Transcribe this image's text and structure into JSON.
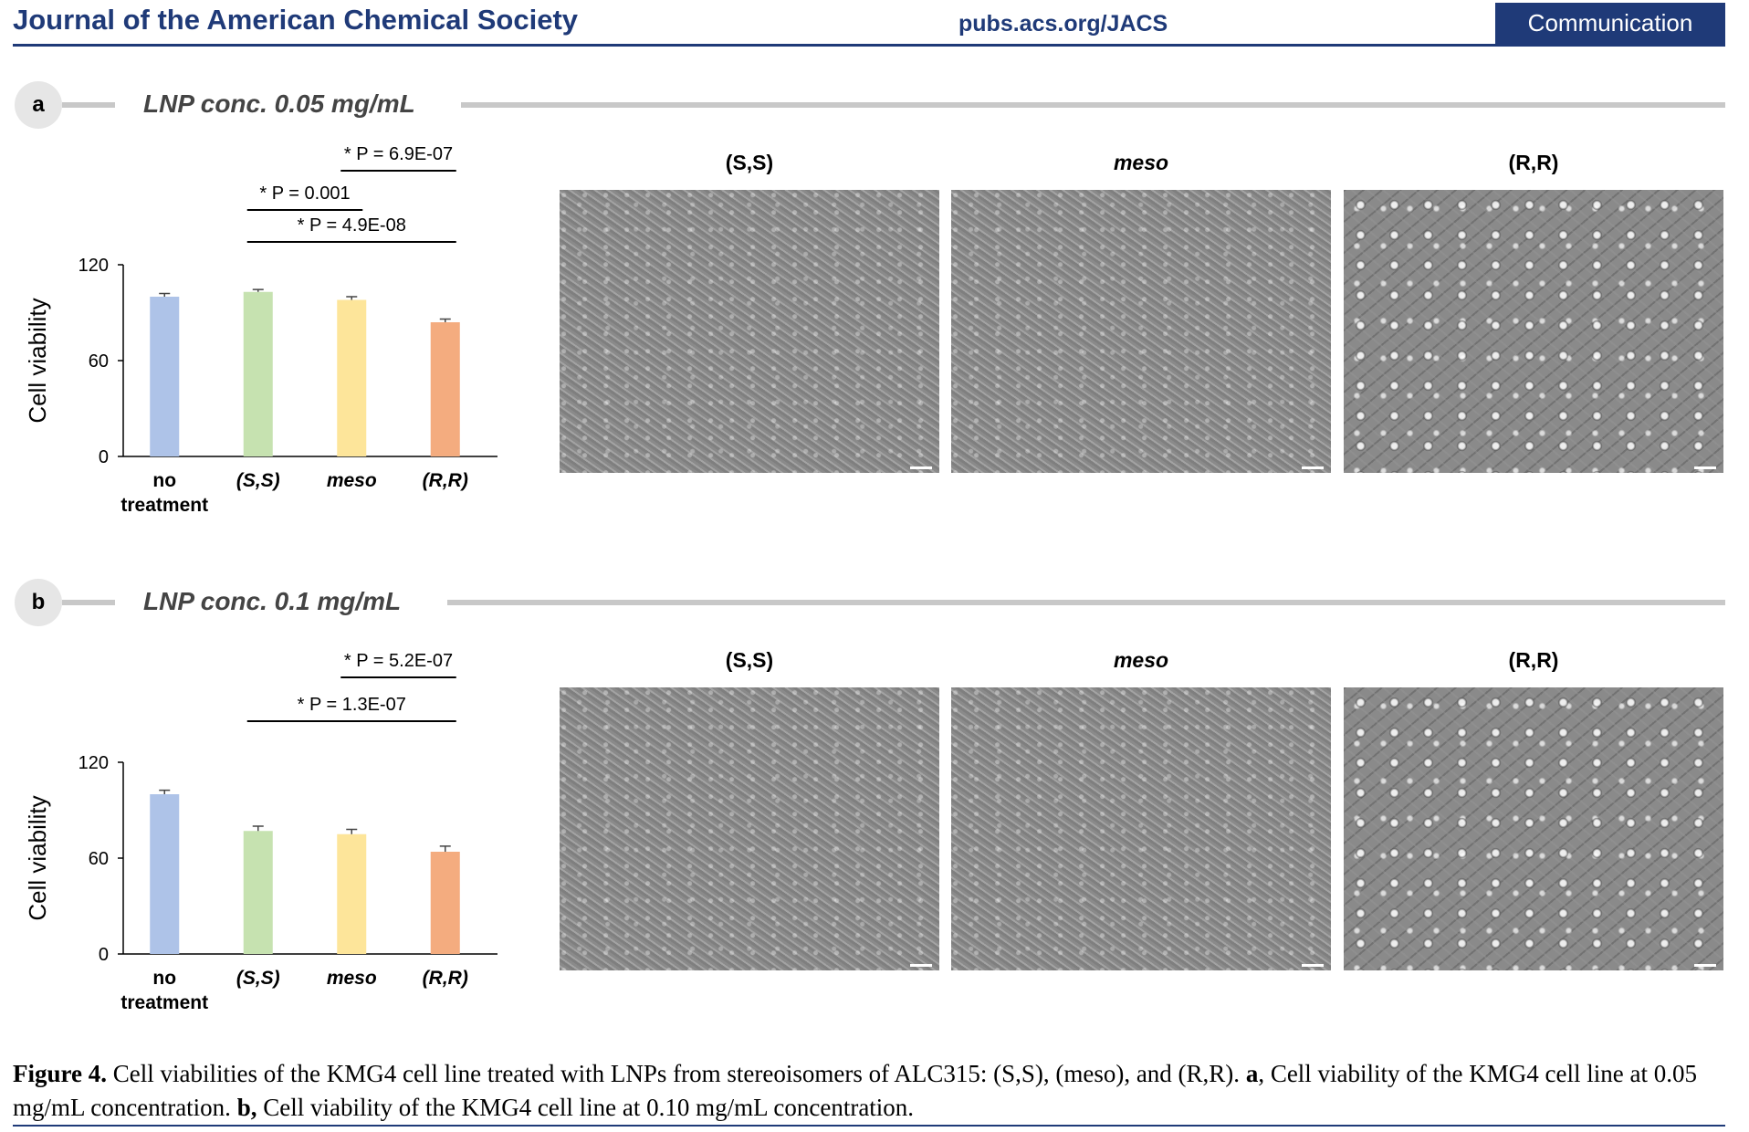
{
  "header": {
    "journal": "Journal of the American Chemical Society",
    "url": "pubs.acs.org/JACS",
    "tag": "Communication"
  },
  "panels": [
    {
      "letter": "a",
      "concentration": "LNP conc. 0.05 mg/mL",
      "image_labels": [
        "(S,S)",
        "meso",
        "(R,R)"
      ]
    },
    {
      "letter": "b",
      "concentration": "LNP conc. 0.1 mg/mL",
      "image_labels": [
        "(S,S)",
        "meso",
        "(R,R)"
      ]
    }
  ],
  "chart_data": [
    {
      "type": "bar",
      "ylabel": "Cell viability",
      "ylim": [
        0,
        120
      ],
      "yticks": [
        0,
        60,
        120
      ],
      "categories": [
        "no treatment",
        "(S,S)",
        "meso",
        "(R,R)"
      ],
      "values": [
        100,
        103,
        98,
        84
      ],
      "errors": [
        2,
        1.5,
        2,
        2
      ],
      "colors": [
        "#aec3e8",
        "#c6e2b0",
        "#fde59a",
        "#f4ac7f"
      ],
      "significance": [
        {
          "from": 1,
          "to": 3,
          "label": "P = 4.9E-08"
        },
        {
          "from": 1,
          "to": 2,
          "label": "P = 0.001"
        },
        {
          "from": 2,
          "to": 3,
          "label": "P = 6.9E-07"
        }
      ]
    },
    {
      "type": "bar",
      "ylabel": "Cell viability",
      "ylim": [
        0,
        120
      ],
      "yticks": [
        0,
        60,
        120
      ],
      "categories": [
        "no treatment",
        "(S,S)",
        "meso",
        "(R,R)"
      ],
      "values": [
        100,
        77,
        75,
        64
      ],
      "errors": [
        2.5,
        3,
        3,
        3.5
      ],
      "colors": [
        "#aec3e8",
        "#c6e2b0",
        "#fde59a",
        "#f4ac7f"
      ],
      "significance": [
        {
          "from": 1,
          "to": 3,
          "label": "P = 1.3E-07"
        },
        {
          "from": 2,
          "to": 3,
          "label": "P = 5.2E-07"
        }
      ]
    }
  ],
  "caption": {
    "figure_label": "Figure 4.",
    "text1": " Cell viabilities of the KMG4 cell line treated with LNPs from stereoisomers of ALC315: (S,S), (meso), and (R,R). ",
    "a_label": "a",
    "text2": ", Cell viability of the KMG4 cell line at 0.05 mg/mL concentration. ",
    "b_label": "b,",
    "text3": " Cell viability of the KMG4 cell line at 0.10 mg/mL concentration."
  }
}
